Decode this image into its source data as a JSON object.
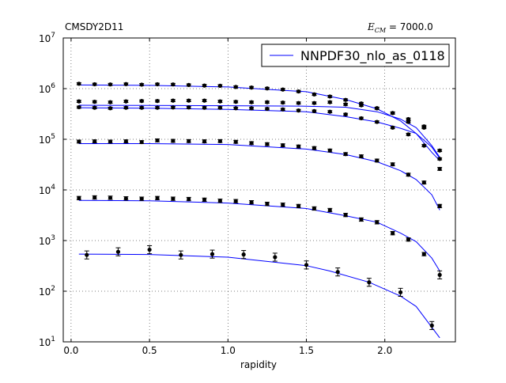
{
  "header": {
    "dataset_title": "CMSDY2D11",
    "energy_symbol": "E",
    "energy_subscript": "CM",
    "energy_value": "= 7000.0"
  },
  "chart_data": {
    "type": "scatter",
    "xlabel": "rapidity",
    "ylabel": "",
    "xlim": [
      -0.05,
      2.45
    ],
    "ylim": [
      10,
      10000000
    ],
    "yscale": "log",
    "grid": true,
    "legend_position": "top-right",
    "x_ticks": [
      {
        "value": 0.0,
        "label": "0.0"
      },
      {
        "value": 0.5,
        "label": "0.5"
      },
      {
        "value": 1.0,
        "label": "1.0"
      },
      {
        "value": 1.5,
        "label": "1.5"
      },
      {
        "value": 2.0,
        "label": "2.0"
      }
    ],
    "y_ticks": [
      {
        "value": 10,
        "base": "10",
        "exp": "1"
      },
      {
        "value": 100,
        "base": "10",
        "exp": "2"
      },
      {
        "value": 1000,
        "base": "10",
        "exp": "3"
      },
      {
        "value": 10000,
        "base": "10",
        "exp": "4"
      },
      {
        "value": 100000,
        "base": "10",
        "exp": "5"
      },
      {
        "value": 1000000,
        "base": "10",
        "exp": "6"
      },
      {
        "value": 10000000,
        "base": "10",
        "exp": "7"
      }
    ],
    "theory": {
      "name": "NNPDF30_nlo_as_0118",
      "color": "#0000ff",
      "curves": [
        {
          "x": [
            0.05,
            0.5,
            1.0,
            1.5,
            1.75,
            1.95,
            2.1,
            2.2,
            2.3,
            2.35
          ],
          "y": [
            1180000,
            1160000,
            1080000,
            870000,
            610000,
            400000,
            230000,
            130000,
            70000,
            42000
          ]
        },
        {
          "x": [
            0.05,
            0.5,
            1.0,
            1.5,
            1.75,
            1.95,
            2.1,
            2.2,
            2.3,
            2.35
          ],
          "y": [
            470000,
            465000,
            460000,
            450000,
            430000,
            350000,
            250000,
            170000,
            75000,
            44000
          ]
        },
        {
          "x": [
            0.05,
            0.5,
            1.0,
            1.5,
            1.75,
            1.95,
            2.1,
            2.2,
            2.3,
            2.35
          ],
          "y": [
            420000,
            410000,
            390000,
            350000,
            280000,
            220000,
            165000,
            130000,
            55000,
            38000
          ]
        },
        {
          "x": [
            0.05,
            0.5,
            1.0,
            1.5,
            1.75,
            1.95,
            2.1,
            2.2,
            2.3,
            2.35
          ],
          "y": [
            82000,
            82000,
            79000,
            64000,
            50000,
            36000,
            24000,
            16000,
            8000,
            4000
          ]
        },
        {
          "x": [
            0.05,
            0.5,
            1.0,
            1.5,
            1.75,
            1.95,
            2.1,
            2.2,
            2.3,
            2.35
          ],
          "y": [
            6200,
            6100,
            5500,
            4300,
            3100,
            2300,
            1400,
            950,
            450,
            250
          ]
        },
        {
          "x": [
            0.05,
            0.5,
            1.0,
            1.5,
            1.65,
            1.9,
            2.1,
            2.2,
            2.35
          ],
          "y": [
            540,
            530,
            470,
            320,
            250,
            150,
            80,
            50,
            12
          ]
        }
      ]
    },
    "data_series": [
      {
        "x": [
          0.05,
          0.15,
          0.25,
          0.35,
          0.45,
          0.55,
          0.65,
          0.75,
          0.85,
          0.95,
          1.05,
          1.15,
          1.25,
          1.35,
          1.45,
          1.55,
          1.65,
          1.75,
          1.85,
          1.95,
          2.05,
          2.15,
          2.25,
          2.35
        ],
        "y": [
          1250000,
          1220000,
          1210000,
          1230000,
          1200000,
          1220000,
          1210000,
          1180000,
          1150000,
          1140000,
          1080000,
          1050000,
          1010000,
          960000,
          880000,
          770000,
          700000,
          600000,
          510000,
          410000,
          330000,
          250000,
          170000,
          60000
        ]
      },
      {
        "x": [
          0.05,
          0.15,
          0.25,
          0.35,
          0.45,
          0.55,
          0.65,
          0.75,
          0.85,
          0.95,
          1.05,
          1.15,
          1.25,
          1.35,
          1.45,
          1.55,
          1.65,
          1.75,
          1.85,
          1.95,
          2.05,
          2.15,
          2.25,
          2.35
        ],
        "y": [
          560000,
          550000,
          540000,
          560000,
          570000,
          570000,
          580000,
          580000,
          580000,
          560000,
          550000,
          540000,
          540000,
          530000,
          520000,
          520000,
          540000,
          490000,
          470000,
          410000,
          330000,
          220000,
          180000,
          41000
        ]
      },
      {
        "x": [
          0.05,
          0.15,
          0.25,
          0.35,
          0.45,
          0.55,
          0.65,
          0.75,
          0.85,
          0.95,
          1.05,
          1.15,
          1.25,
          1.35,
          1.45,
          1.55,
          1.65,
          1.75,
          1.85,
          1.95,
          2.05,
          2.15,
          2.25
        ],
        "y": [
          430000,
          420000,
          410000,
          420000,
          420000,
          420000,
          425000,
          425000,
          420000,
          420000,
          410000,
          410000,
          400000,
          390000,
          370000,
          360000,
          350000,
          310000,
          260000,
          220000,
          170000,
          125000,
          75000
        ]
      },
      {
        "x": [
          0.05,
          0.15,
          0.25,
          0.35,
          0.45,
          0.55,
          0.65,
          0.75,
          0.85,
          0.95,
          1.05,
          1.15,
          1.25,
          1.35,
          1.45,
          1.55,
          1.65,
          1.75,
          1.85,
          1.95,
          2.05,
          2.15,
          2.25,
          2.35
        ],
        "y": [
          90000,
          91000,
          90000,
          91000,
          88000,
          95000,
          93000,
          92000,
          91000,
          92000,
          89000,
          84000,
          80000,
          76000,
          72000,
          67000,
          60000,
          51000,
          46000,
          38000,
          32000,
          20000,
          14000,
          26000
        ]
      },
      {
        "x": [
          0.05,
          0.15,
          0.25,
          0.35,
          0.45,
          0.55,
          0.65,
          0.75,
          0.85,
          0.95,
          1.05,
          1.15,
          1.25,
          1.35,
          1.45,
          1.55,
          1.65,
          1.75,
          1.85,
          1.95,
          2.05,
          2.15,
          2.25,
          2.35
        ],
        "y": [
          6900,
          7100,
          7000,
          6800,
          6700,
          6900,
          6700,
          6600,
          6400,
          6100,
          6000,
          5700,
          5300,
          5100,
          4800,
          4300,
          4000,
          3200,
          2600,
          2300,
          1400,
          1050,
          540,
          4800
        ]
      },
      {
        "x": [
          0.1,
          0.3,
          0.5,
          0.7,
          0.9,
          1.1,
          1.3,
          1.5,
          1.7,
          1.9,
          2.1,
          2.3,
          2.35
        ],
        "y": [
          520,
          600,
          660,
          520,
          540,
          530,
          470,
          330,
          240,
          150,
          95,
          21,
          210
        ]
      }
    ],
    "error_ratio": [
      0.05,
      0.05,
      0.05,
      0.07,
      0.08,
      0.2
    ]
  }
}
